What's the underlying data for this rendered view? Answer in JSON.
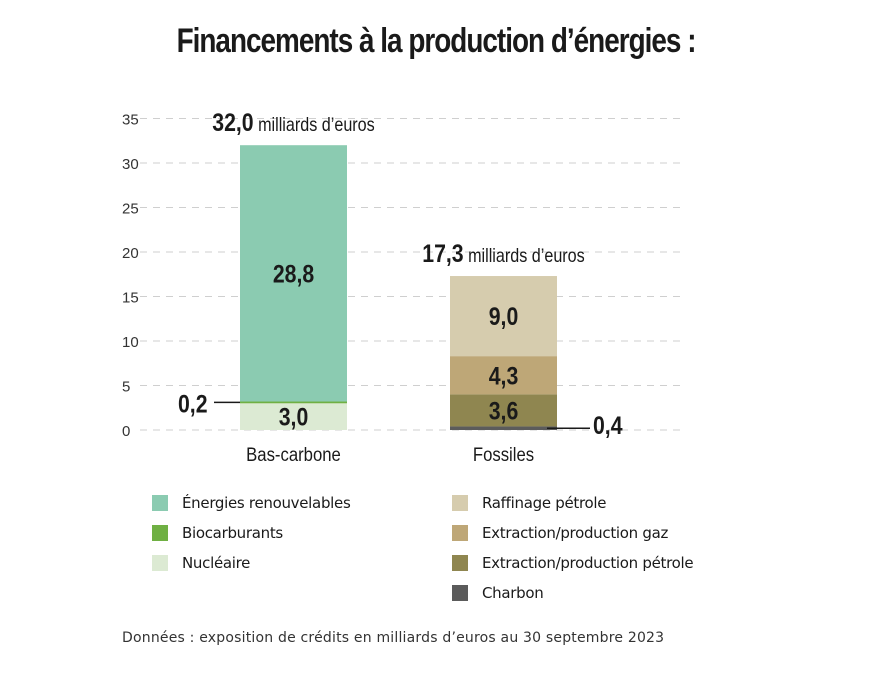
{
  "title": "Financements à la production d’énergies :",
  "chart_data": {
    "type": "bar",
    "stacked": true,
    "categories": [
      "Bas-carbone",
      "Fossiles"
    ],
    "ylim": [
      0,
      35
    ],
    "yticks": [
      0,
      5,
      10,
      15,
      20,
      25,
      30,
      35
    ],
    "grid": true,
    "totals": [
      {
        "value": "32,0",
        "unit": "milliards d’euros"
      },
      {
        "value": "17,3",
        "unit": "milliards d’euros"
      }
    ],
    "series": [
      {
        "name": "Nucléaire",
        "category": "Bas-carbone",
        "value": 3.0,
        "label": "3,0",
        "color": "#dcead3"
      },
      {
        "name": "Biocarburants",
        "category": "Bas-carbone",
        "value": 0.2,
        "label": "0,2",
        "color": "#6fb043"
      },
      {
        "name": "Énergies renouvelables",
        "category": "Bas-carbone",
        "value": 28.8,
        "label": "28,8",
        "color": "#8bcbb1"
      },
      {
        "name": "Charbon",
        "category": "Fossiles",
        "value": 0.4,
        "label": "0,4",
        "color": "#5b5b5b"
      },
      {
        "name": "Extraction/production pétrole",
        "category": "Fossiles",
        "value": 3.6,
        "label": "3,6",
        "color": "#8f8650"
      },
      {
        "name": "Extraction/production gaz",
        "category": "Fossiles",
        "value": 4.3,
        "label": "4,3",
        "color": "#bea777"
      },
      {
        "name": "Raffinage pétrole",
        "category": "Fossiles",
        "value": 9.0,
        "label": "9,0",
        "color": "#d6ccae"
      }
    ],
    "legend_left": [
      "Énergies renouvelables",
      "Biocarburants",
      "Nucléaire"
    ],
    "legend_right": [
      "Raffinage pétrole",
      "Extraction/production gaz",
      "Extraction/production pétrole",
      "Charbon"
    ]
  },
  "footnote": "Données : exposition de crédits en milliards d’euros au 30 septembre 2023"
}
